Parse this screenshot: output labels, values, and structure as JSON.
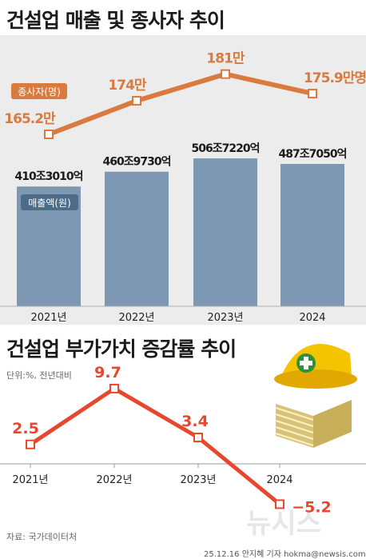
{
  "titles": {
    "main": "건설업 매출 및 종사자 추이",
    "sub": "건설업 부가가치 증감률 추이"
  },
  "notes": {
    "unit": "단위:%, 전년대비",
    "source": "자료: 국가데이터처",
    "credit": "25.12.16 안지혜 기자 hokma@newsis.com",
    "watermark": "뉴시스"
  },
  "colors": {
    "bar": "#7d98b3",
    "workers_line": "#d97a3e",
    "growth_line": "#e8472f",
    "panel_bg": "#ececec"
  },
  "chart_data": [
    {
      "type": "bar",
      "categories": [
        "2021년",
        "2022년",
        "2023년",
        "2024"
      ],
      "series": [
        {
          "name": "매출액(원)",
          "values": [
            410.301,
            460.973,
            506.722,
            487.705
          ],
          "labels": [
            "410조3010억",
            "460조9730억",
            "506조7220억",
            "487조7050억"
          ]
        }
      ]
    },
    {
      "type": "line",
      "categories": [
        "2021년",
        "2022년",
        "2023년",
        "2024"
      ],
      "series": [
        {
          "name": "종사자(명)",
          "values": [
            165.2,
            174,
            181,
            175.9
          ],
          "labels": [
            "165.2만",
            "174만",
            "181만",
            "175.9만명"
          ]
        }
      ]
    },
    {
      "type": "line",
      "categories": [
        "2021년",
        "2022년",
        "2023년",
        "2024"
      ],
      "series": [
        {
          "values": [
            2.5,
            9.7,
            3.4,
            -5.2
          ],
          "labels": [
            "2.5",
            "9.7",
            "3.4",
            "−5.2"
          ]
        }
      ]
    }
  ]
}
